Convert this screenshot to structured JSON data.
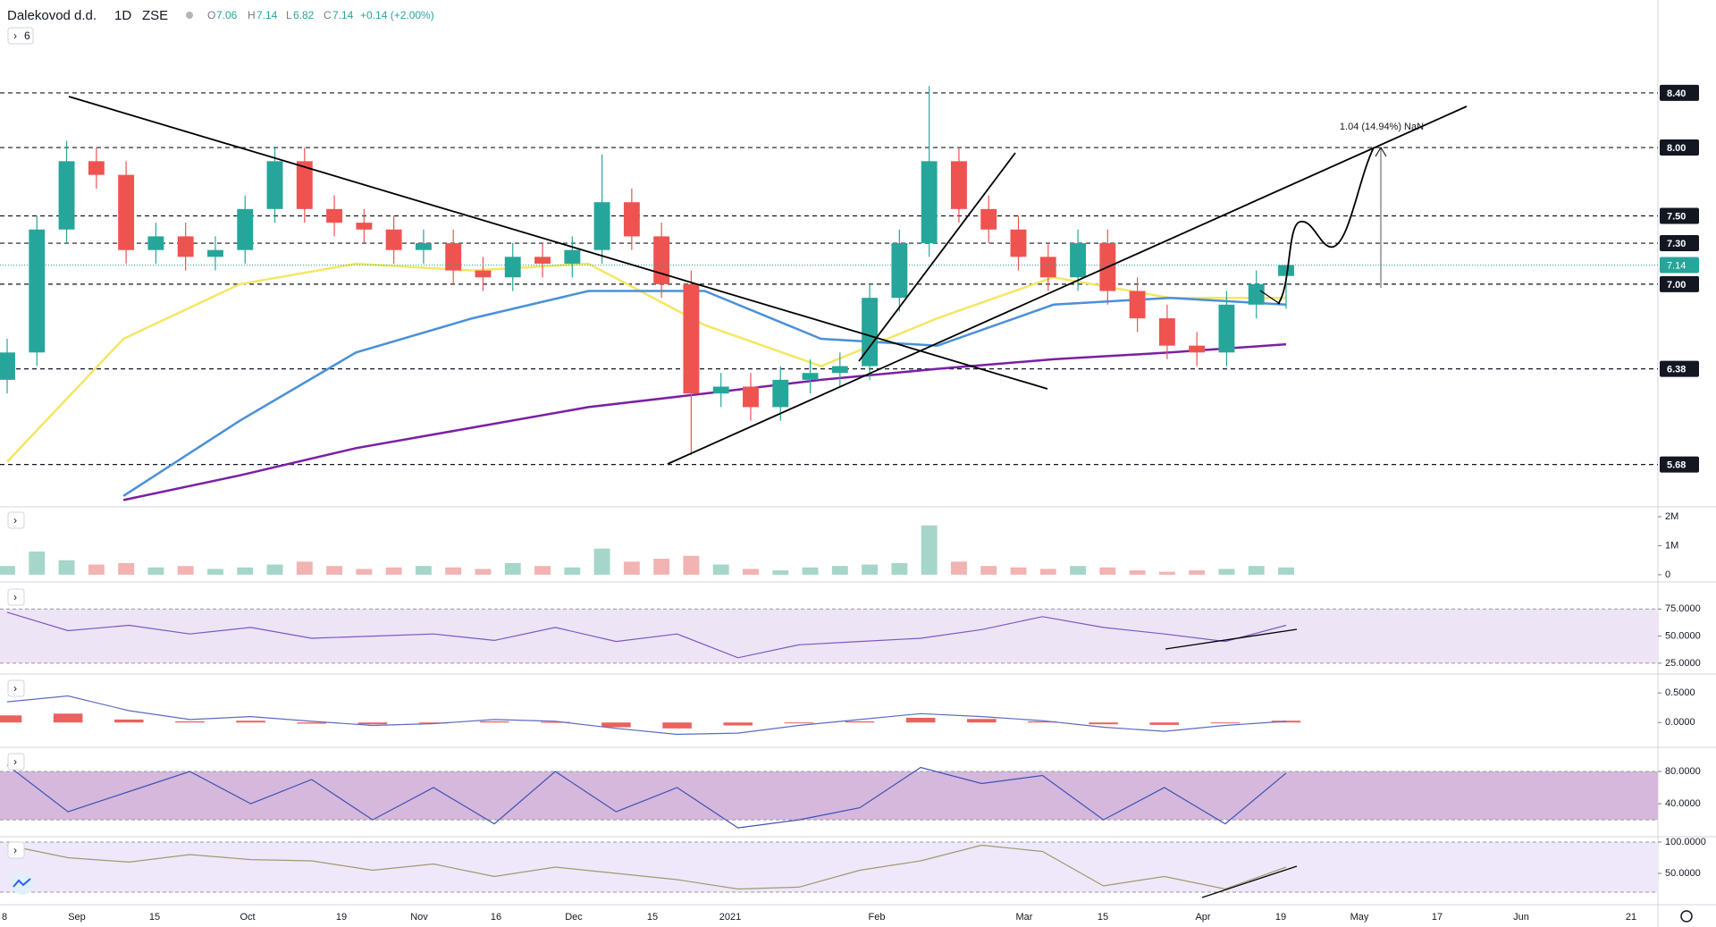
{
  "header": {
    "symbol": "Dalekovod d.d.",
    "interval": "1D",
    "exchange": "ZSE",
    "o_label": "O",
    "h_label": "H",
    "l_label": "L",
    "c_label": "C",
    "change": "+0.14 (+2.00%)",
    "indicators": "6"
  },
  "chart_data": [
    {
      "type": "candlestick",
      "open": [
        6.3,
        6.5,
        7.4,
        7.9,
        7.8,
        7.25,
        7.35,
        7.2,
        7.25,
        7.55,
        7.9,
        7.55,
        7.45,
        7.4,
        7.25,
        7.3,
        7.1,
        7.05,
        7.2,
        7.15,
        7.25,
        7.6,
        7.35,
        7.0,
        6.2,
        6.25,
        6.1,
        6.3,
        6.35,
        6.4,
        6.9,
        7.3,
        7.9,
        7.55,
        7.4,
        7.2,
        7.05,
        7.3,
        6.95,
        6.75,
        6.55,
        6.5,
        6.85,
        7.06
      ],
      "high": [
        6.6,
        7.5,
        8.05,
        8.0,
        7.9,
        7.45,
        7.45,
        7.35,
        7.65,
        8.0,
        8.0,
        7.65,
        7.55,
        7.5,
        7.4,
        7.4,
        7.2,
        7.3,
        7.3,
        7.35,
        7.95,
        7.7,
        7.45,
        7.1,
        6.35,
        6.35,
        6.4,
        6.45,
        6.5,
        7.0,
        7.4,
        8.45,
        8.0,
        7.65,
        7.5,
        7.3,
        7.4,
        7.4,
        7.05,
        6.85,
        6.65,
        6.95,
        7.1,
        7.14
      ],
      "low": [
        6.2,
        6.4,
        7.3,
        7.7,
        7.15,
        7.15,
        7.1,
        7.1,
        7.15,
        7.45,
        7.45,
        7.35,
        7.3,
        7.15,
        7.15,
        7.0,
        6.95,
        6.95,
        7.05,
        7.05,
        7.15,
        7.25,
        6.9,
        5.75,
        6.1,
        6.0,
        6.0,
        6.2,
        6.25,
        6.3,
        6.8,
        7.2,
        7.45,
        7.3,
        7.1,
        6.95,
        6.95,
        6.85,
        6.65,
        6.45,
        6.4,
        6.4,
        6.75,
        6.82
      ],
      "close": [
        6.5,
        7.4,
        7.9,
        7.8,
        7.25,
        7.35,
        7.2,
        7.25,
        7.55,
        7.9,
        7.55,
        7.45,
        7.4,
        7.25,
        7.3,
        7.1,
        7.05,
        7.2,
        7.15,
        7.25,
        7.6,
        7.35,
        7.0,
        6.2,
        6.25,
        6.1,
        6.3,
        6.35,
        6.4,
        6.9,
        7.3,
        7.9,
        7.55,
        7.4,
        7.2,
        7.05,
        7.3,
        6.95,
        6.75,
        6.55,
        6.5,
        6.85,
        7.0,
        7.14
      ],
      "up_color": "#26a69a",
      "down_color": "#ef5350",
      "series": [
        {
          "color": "#f5e663",
          "values": [
            5.7,
            6.6,
            7.0,
            7.15,
            7.1,
            7.15,
            6.7,
            6.4,
            6.75,
            7.05,
            6.9,
            6.9
          ]
        },
        {
          "color": "#4a90d9",
          "values": [
            null,
            5.45,
            6.0,
            6.5,
            6.75,
            6.95,
            6.95,
            6.6,
            6.55,
            6.85,
            6.9,
            6.85
          ]
        },
        {
          "color": "#7b1fa2",
          "values": [
            null,
            5.42,
            5.6,
            5.8,
            5.95,
            6.1,
            6.2,
            6.3,
            6.38,
            6.45,
            6.5,
            6.56
          ]
        }
      ],
      "ylim": [
        5.37,
        9.08
      ],
      "yticks": [
        {
          "value": 8.4,
          "label": "8.40"
        },
        {
          "value": 8.0,
          "label": "8.00"
        },
        {
          "value": 7.5,
          "label": "7.50"
        },
        {
          "value": 7.3,
          "label": "7.30"
        },
        {
          "value": 7.0,
          "label": "7.00"
        },
        6.38,
        5.68
      ],
      "x_labels": [
        "8",
        "Sep",
        "15",
        "Oct",
        "19",
        "Nov",
        "16",
        "Dec",
        "15",
        "2021",
        "Feb",
        "Mar",
        "15",
        "Apr",
        "19",
        "May",
        "17",
        "Jun",
        "21"
      ],
      "annotation": "1.04 (14.94%) NaN"
    },
    {
      "type": "bar",
      "values": [
        300000,
        800000,
        500000,
        350000,
        400000,
        250000,
        300000,
        200000,
        250000,
        350000,
        450000,
        300000,
        200000,
        250000,
        300000,
        250000,
        200000,
        400000,
        300000,
        250000,
        900000,
        450000,
        550000,
        650000,
        350000,
        200000,
        150000,
        250000,
        300000,
        350000,
        400000,
        1700000,
        450000,
        300000,
        250000,
        200000,
        300000,
        250000,
        150000,
        100000,
        150000,
        200000,
        300000,
        250000
      ],
      "up_color": "#a5d6c9",
      "down_color": "#f2b3b3",
      "ylim": [
        -250000,
        2340000
      ],
      "yticks": [
        {
          "value": 2000000,
          "label": "2M"
        },
        {
          "value": 1000000,
          "label": "1M"
        },
        0
      ]
    },
    {
      "type": "line",
      "series": [
        {
          "color": "#7e57c2",
          "values": [
            72,
            55,
            60,
            52,
            58,
            48,
            50,
            52,
            46,
            58,
            45,
            52,
            30,
            42,
            45,
            48,
            56,
            68,
            58,
            52,
            45,
            60
          ]
        }
      ],
      "band": [
        25,
        75
      ],
      "band_color": "#ede4f5",
      "ylim": [
        15,
        100
      ],
      "yticks": [
        {
          "value": 75,
          "label": "75.0000"
        },
        {
          "value": 50,
          "label": "50.0000"
        },
        {
          "value": 25,
          "label": "25.0000"
        }
      ]
    },
    {
      "type": "line",
      "series": [
        {
          "kind": "histogram",
          "color": "#e53935",
          "values": [
            0.12,
            0.15,
            0.05,
            0.02,
            0.03,
            -0.02,
            -0.03,
            -0.01,
            0.02,
            0.01,
            -0.08,
            -0.1,
            -0.05,
            0.0,
            0.02,
            0.08,
            0.06,
            0.02,
            -0.03,
            -0.04,
            0.0,
            0.03
          ]
        },
        {
          "color": "#5c6bc0",
          "values": [
            0.35,
            0.45,
            0.2,
            0.05,
            0.1,
            0.02,
            -0.05,
            -0.02,
            0.05,
            0.02,
            -0.1,
            -0.2,
            -0.18,
            -0.05,
            0.05,
            0.15,
            0.1,
            0.03,
            -0.08,
            -0.15,
            -0.05,
            0.02
          ]
        }
      ],
      "ylim": [
        -0.42,
        0.82
      ],
      "yticks": [
        {
          "value": 0.5,
          "label": "0.5000"
        },
        {
          "value": 0,
          "label": "0.0000"
        }
      ]
    },
    {
      "type": "line",
      "series": [
        {
          "color": "#3f51b5",
          "values": [
            88,
            30,
            55,
            80,
            40,
            70,
            20,
            60,
            15,
            80,
            30,
            60,
            10,
            20,
            35,
            85,
            65,
            75,
            20,
            60,
            15,
            78
          ]
        }
      ],
      "band": [
        20,
        80
      ],
      "band_color": "#d5b8dc",
      "ylim": [
        -1,
        110
      ],
      "yticks": [
        {
          "value": 80,
          "label": "80.0000"
        },
        {
          "value": 40,
          "label": "40.0000"
        }
      ]
    },
    {
      "type": "line",
      "series": [
        {
          "color": "#9e9a6e",
          "values": [
            95,
            75,
            68,
            80,
            72,
            70,
            55,
            65,
            45,
            60,
            50,
            40,
            25,
            28,
            55,
            70,
            95,
            85,
            30,
            45,
            25,
            60
          ]
        }
      ],
      "band": [
        20,
        100
      ],
      "band_color": "#efe8fb",
      "ylim": [
        0,
        108.6
      ],
      "yticks": [
        {
          "value": 100,
          "label": "100.0000"
        },
        {
          "value": 50,
          "label": "50.0000"
        }
      ]
    }
  ]
}
